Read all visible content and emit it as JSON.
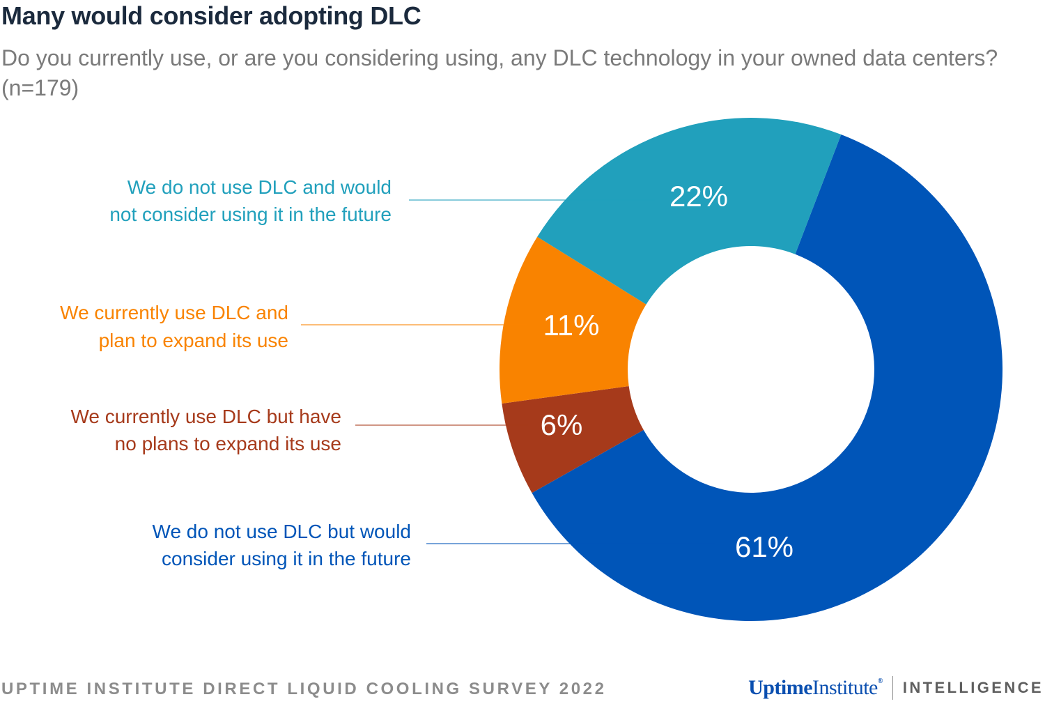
{
  "header": {
    "title": "Many would consider adopting DLC",
    "subtitle": "Do you currently use, or are you considering using, any DLC technology in your owned data centers? (n=179)"
  },
  "chart_data": {
    "type": "pie",
    "donut": true,
    "categories": [
      "We do not use DLC but would consider using it in the future",
      "We currently use DLC but have no plans to expand its use",
      "We currently use DLC and plan to expand its use",
      "We do not use DLC and would not consider using it in the future"
    ],
    "values": [
      61,
      6,
      11,
      22
    ],
    "value_labels": [
      "61%",
      "6%",
      "11%",
      "22%"
    ],
    "label_lines": [
      [
        "We do not use DLC but would",
        "consider using it in the future"
      ],
      [
        "We currently use DLC but have",
        "no plans to expand its use"
      ],
      [
        "We currently use DLC and",
        "plan to expand its use"
      ],
      [
        "We do not use DLC and would",
        "not consider using it in the future"
      ]
    ],
    "colors": [
      "#0055b8",
      "#a63a1b",
      "#f98300",
      "#21a0bc"
    ],
    "label_colors": [
      "#0055b8",
      "#a63a1b",
      "#f98300",
      "#21a0bc"
    ]
  },
  "footer": {
    "source": "UPTIME INSTITUTE DIRECT LIQUID COOLING SURVEY 2022",
    "brand_bold": "Uptime",
    "brand_light": "Institute",
    "brand_reg": "®",
    "brand_suffix": "INTELLIGENCE"
  }
}
